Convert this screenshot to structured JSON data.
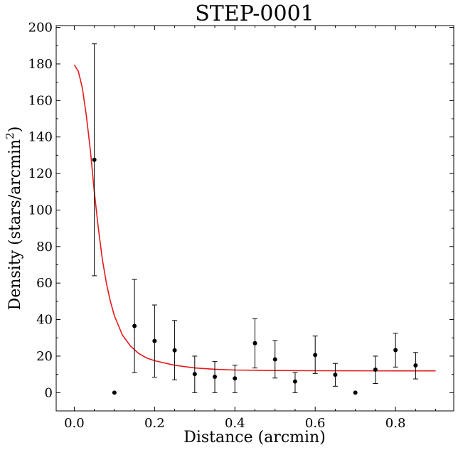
{
  "chart_data": {
    "type": "scatter",
    "title": "STEP-0001",
    "xlabel": "Distance (arcmin)",
    "ylabel": {
      "base": "Density (stars/arcmin",
      "sup": "2",
      "close": ")"
    },
    "xlim": [
      -0.045,
      0.945
    ],
    "ylim": [
      -10,
      201
    ],
    "x_ticks": [
      0.0,
      0.2,
      0.4,
      0.6,
      0.8
    ],
    "x_tick_labels": [
      "0.0",
      "0.2",
      "0.4",
      "0.6",
      "0.8"
    ],
    "y_ticks": [
      0,
      20,
      40,
      60,
      80,
      100,
      120,
      140,
      160,
      180,
      200
    ],
    "y_tick_labels": [
      "0",
      "20",
      "40",
      "60",
      "80",
      "100",
      "120",
      "140",
      "160",
      "180",
      "200"
    ],
    "points": [
      {
        "x": 0.05,
        "y": 127.5,
        "err_low": 64,
        "err_high": 191
      },
      {
        "x": 0.1,
        "y": 0,
        "err_low": null,
        "err_high": null
      },
      {
        "x": 0.15,
        "y": 36.5,
        "err_low": 11,
        "err_high": 62
      },
      {
        "x": 0.2,
        "y": 28.3,
        "err_low": 8.5,
        "err_high": 48
      },
      {
        "x": 0.25,
        "y": 23.2,
        "err_low": 7,
        "err_high": 39.5
      },
      {
        "x": 0.3,
        "y": 10.2,
        "err_low": 0,
        "err_high": 20
      },
      {
        "x": 0.35,
        "y": 8.7,
        "err_low": 0,
        "err_high": 17
      },
      {
        "x": 0.4,
        "y": 7.8,
        "err_low": 0,
        "err_high": 15
      },
      {
        "x": 0.45,
        "y": 27.1,
        "err_low": 13.5,
        "err_high": 40.5
      },
      {
        "x": 0.5,
        "y": 18.2,
        "err_low": 8,
        "err_high": 28.5
      },
      {
        "x": 0.55,
        "y": 6.1,
        "err_low": 0,
        "err_high": 11
      },
      {
        "x": 0.6,
        "y": 20.6,
        "err_low": 10.5,
        "err_high": 31
      },
      {
        "x": 0.65,
        "y": 9.8,
        "err_low": 3.5,
        "err_high": 16
      },
      {
        "x": 0.7,
        "y": 0,
        "err_low": null,
        "err_high": null
      },
      {
        "x": 0.75,
        "y": 12.6,
        "err_low": 5,
        "err_high": 20
      },
      {
        "x": 0.8,
        "y": 23.3,
        "err_low": 14,
        "err_high": 32.5
      },
      {
        "x": 0.85,
        "y": 14.9,
        "err_low": 7.5,
        "err_high": 22
      }
    ],
    "fit_curve": {
      "x": [
        0.0,
        0.01,
        0.02,
        0.03,
        0.04,
        0.05,
        0.06,
        0.07,
        0.08,
        0.09,
        0.1,
        0.12,
        0.14,
        0.16,
        0.18,
        0.2,
        0.25,
        0.3,
        0.35,
        0.4,
        0.5,
        0.6,
        0.7,
        0.8,
        0.9
      ],
      "y": [
        179.5,
        176,
        167,
        152,
        133,
        110,
        90,
        73,
        60,
        50,
        42,
        31.5,
        25.5,
        21.5,
        19,
        17.5,
        15,
        13.5,
        12.8,
        12.4,
        12.1,
        12.0,
        11.95,
        11.9,
        11.9
      ]
    },
    "colors": {
      "fit": "#e41a1c",
      "points": "#000000",
      "axes": "#000000"
    },
    "grid": false,
    "legend": "none"
  }
}
